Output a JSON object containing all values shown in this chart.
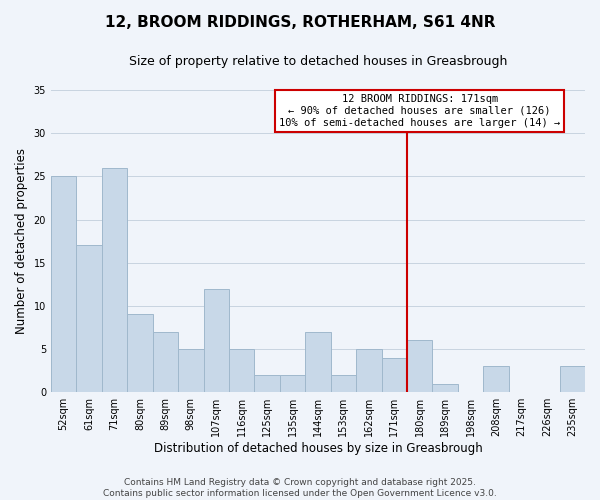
{
  "title": "12, BROOM RIDDINGS, ROTHERHAM, S61 4NR",
  "subtitle": "Size of property relative to detached houses in Greasbrough",
  "xlabel": "Distribution of detached houses by size in Greasbrough",
  "ylabel": "Number of detached properties",
  "footer_line1": "Contains HM Land Registry data © Crown copyright and database right 2025.",
  "footer_line2": "Contains public sector information licensed under the Open Government Licence v3.0.",
  "categories": [
    "52sqm",
    "61sqm",
    "71sqm",
    "80sqm",
    "89sqm",
    "98sqm",
    "107sqm",
    "116sqm",
    "125sqm",
    "135sqm",
    "144sqm",
    "153sqm",
    "162sqm",
    "171sqm",
    "180sqm",
    "189sqm",
    "198sqm",
    "208sqm",
    "217sqm",
    "226sqm",
    "235sqm"
  ],
  "values": [
    25,
    17,
    26,
    9,
    7,
    5,
    12,
    5,
    2,
    2,
    7,
    2,
    5,
    4,
    6,
    1,
    0,
    3,
    0,
    0,
    3
  ],
  "bar_color": "#c8d8e8",
  "bar_edge_color": "#a0b8cc",
  "highlight_index": 13,
  "highlight_line_color": "#cc0000",
  "annotation_line1": "12 BROOM RIDDINGS: 171sqm",
  "annotation_line2": "← 90% of detached houses are smaller (126)",
  "annotation_line3": "10% of semi-detached houses are larger (14) →",
  "annotation_box_edge_color": "#cc0000",
  "ylim": [
    0,
    35
  ],
  "yticks": [
    0,
    5,
    10,
    15,
    20,
    25,
    30,
    35
  ],
  "background_color": "#f0f4fa",
  "grid_color": "#c8d4e0",
  "title_fontsize": 11,
  "subtitle_fontsize": 9,
  "axis_label_fontsize": 8.5,
  "tick_fontsize": 7,
  "footer_fontsize": 6.5,
  "annotation_fontsize": 7.5
}
